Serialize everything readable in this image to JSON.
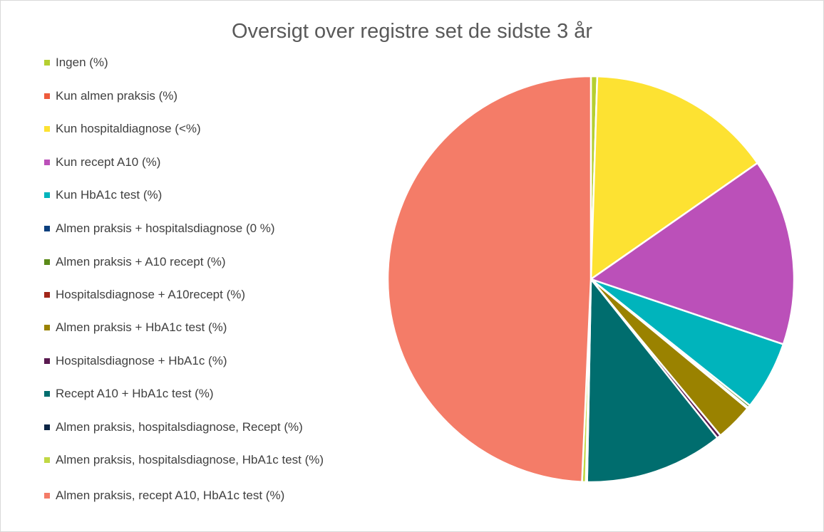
{
  "chart_data": {
    "type": "pie",
    "title": "Oversigt over registre set de sidste 3 år",
    "categories": [
      "Ingen (%)",
      "Kun almen praksis  (%)",
      "Kun hospitaldiagnose  (<%)",
      "Kun recept A10  (%)",
      "Kun HbA1c test (%)",
      "Almen praksis + hospitalsdiagnose (0 %)",
      "Almen praksis + A10 recept (%)",
      "Hospitalsdiagnose + A10recept (%)",
      "Almen praksis + HbA1c test (%)",
      "Hospitalsdiagnose + HbA1c (%)",
      "Recept A10 + HbA1c test (%)",
      "Almen praksis, hospitalsdiagnose, Recept (%)",
      "Almen praksis, hospitalsdiagnose, HbA1c test (%)",
      "Almen praksis, recept A10, HbA1c test (%)"
    ],
    "values": [
      0.5,
      0,
      14.8,
      14.9,
      5.5,
      0,
      0.2,
      0.1,
      3,
      0.3,
      11,
      0.1,
      0.3,
      49.3
    ],
    "colors": [
      "#b5cf31",
      "#ee5b3c",
      "#fde232",
      "#bb50b9",
      "#00b4bc",
      "#0b3f7e",
      "#5b8a19",
      "#a22619",
      "#9a8200",
      "#5a1a50",
      "#006d6e",
      "#0c2545",
      "#c1d844",
      "#f47c68"
    ],
    "legend": "left"
  }
}
